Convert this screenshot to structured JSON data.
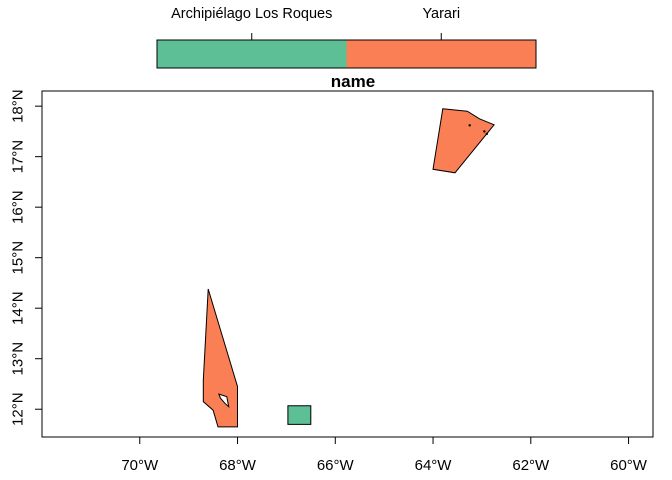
{
  "chart_data": {
    "type": "map",
    "title": "name",
    "xlim": [
      -72,
      -59.5
    ],
    "ylim": [
      11.45,
      18.3
    ],
    "x_ticks": [
      {
        "value": -70,
        "label": "70°W"
      },
      {
        "value": -68,
        "label": "68°W"
      },
      {
        "value": -66,
        "label": "66°W"
      },
      {
        "value": -64,
        "label": "64°W"
      },
      {
        "value": -62,
        "label": "62°W"
      },
      {
        "value": -60,
        "label": "60°W"
      }
    ],
    "y_ticks": [
      {
        "value": 12,
        "label": "12°N"
      },
      {
        "value": 13,
        "label": "13°N"
      },
      {
        "value": 14,
        "label": "14°N"
      },
      {
        "value": 15,
        "label": "15°N"
      },
      {
        "value": 16,
        "label": "16°N"
      },
      {
        "value": 17,
        "label": "17°N"
      },
      {
        "value": 18,
        "label": "18°N"
      }
    ],
    "legend": {
      "position": "top",
      "categories": [
        {
          "label": "Archipiélago Los Roques",
          "color": "#5cbf96"
        },
        {
          "label": "Yarari",
          "color": "#fa7f54"
        }
      ]
    },
    "features": [
      {
        "name": "Yarari",
        "color": "#fa7f54",
        "polygon": [
          [
            -68.6,
            14.38
          ],
          [
            -68.0,
            12.45
          ],
          [
            -68.0,
            11.65
          ],
          [
            -68.4,
            11.65
          ],
          [
            -68.5,
            11.98
          ],
          [
            -68.7,
            12.15
          ],
          [
            -68.7,
            12.57
          ]
        ],
        "holes": [
          [
            [
              -68.38,
              12.3
            ],
            [
              -68.22,
              12.25
            ],
            [
              -68.18,
              12.05
            ],
            [
              -68.26,
              12.12
            ],
            [
              -68.35,
              12.22
            ]
          ]
        ]
      },
      {
        "name": "Yarari",
        "color": "#fa7f54",
        "polygon": [
          [
            -63.8,
            17.95
          ],
          [
            -63.3,
            17.9
          ],
          [
            -63.05,
            17.75
          ],
          [
            -62.75,
            17.63
          ],
          [
            -63.55,
            16.68
          ],
          [
            -64.0,
            16.75
          ]
        ],
        "points": [
          [
            -63.25,
            17.62
          ],
          [
            -62.95,
            17.5
          ],
          [
            -62.9,
            17.45
          ]
        ]
      },
      {
        "name": "Archipiélago Los Roques",
        "color": "#5cbf96",
        "polygon": [
          [
            -66.97,
            12.07
          ],
          [
            -66.5,
            12.07
          ],
          [
            -66.5,
            11.7
          ],
          [
            -66.97,
            11.7
          ]
        ]
      }
    ],
    "grid": false
  }
}
